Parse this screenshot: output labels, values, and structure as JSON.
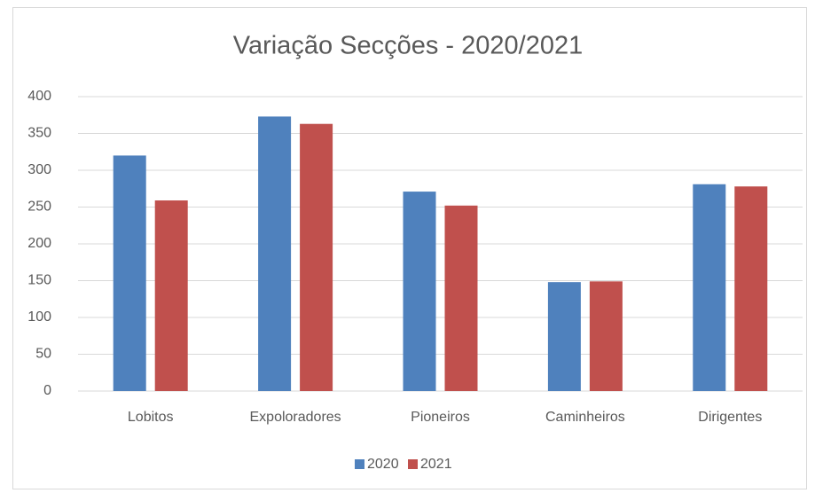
{
  "chart_data": {
    "type": "bar",
    "title": "Variação Secções - 2020/2021",
    "categories": [
      "Lobitos",
      "Expoloradores",
      "Pioneiros",
      "Caminheiros",
      "Dirigentes"
    ],
    "series": [
      {
        "name": "2020",
        "color": "#4f81bd",
        "values": [
          320,
          373,
          271,
          148,
          281
        ]
      },
      {
        "name": "2021",
        "color": "#c0504d",
        "values": [
          259,
          363,
          252,
          149,
          278
        ]
      }
    ],
    "ylim": [
      0,
      400
    ],
    "yticks": [
      0,
      50,
      100,
      150,
      200,
      250,
      300,
      350,
      400
    ],
    "grid": true,
    "legend": "bottom"
  }
}
